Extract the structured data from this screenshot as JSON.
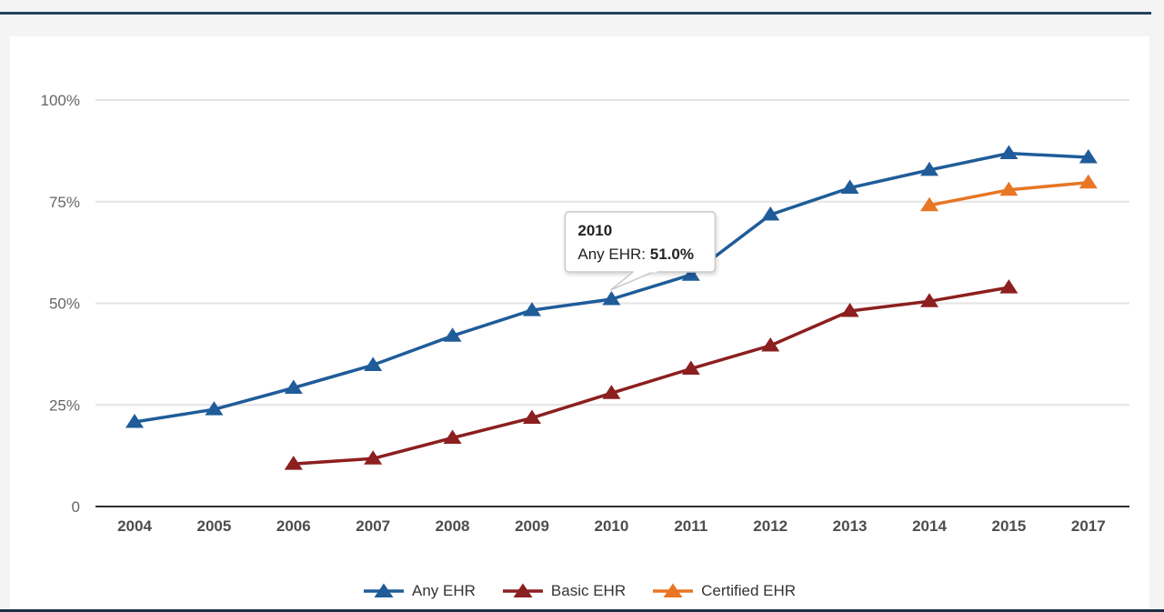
{
  "page": {
    "background_color": "#f4f4f5",
    "card_background": "#ffffff",
    "top_rule_color": "#24425e",
    "bottom_rule_color": "#1b3046"
  },
  "chart_data": {
    "type": "line",
    "title": "",
    "xlabel": "",
    "ylabel": "",
    "categories": [
      "2004",
      "2005",
      "2006",
      "2007",
      "2008",
      "2009",
      "2010",
      "2011",
      "2012",
      "2013",
      "2014",
      "2015",
      "2017"
    ],
    "series": [
      {
        "name": "Any EHR",
        "color": "#1f5c99",
        "marker": "triangle",
        "values": [
          20.8,
          23.9,
          29.2,
          34.8,
          42.0,
          48.3,
          51.0,
          57.0,
          71.8,
          78.4,
          82.8,
          86.9,
          85.9
        ]
      },
      {
        "name": "Basic EHR",
        "color": "#8c1f1f",
        "marker": "triangle",
        "values": [
          null,
          null,
          10.5,
          11.8,
          16.9,
          21.8,
          27.9,
          33.9,
          39.6,
          48.1,
          50.5,
          53.9,
          null
        ]
      },
      {
        "name": "Certified EHR",
        "color": "#e87624",
        "marker": "triangle",
        "values": [
          null,
          null,
          null,
          null,
          null,
          null,
          null,
          null,
          null,
          null,
          74.1,
          77.9,
          79.7
        ]
      }
    ],
    "ylim": [
      0,
      100
    ],
    "yticks": [
      {
        "value": 0,
        "label": "0"
      },
      {
        "value": 25,
        "label": "25%"
      },
      {
        "value": 50,
        "label": "50%"
      },
      {
        "value": 75,
        "label": "75%"
      },
      {
        "value": 100,
        "label": "100%"
      }
    ],
    "grid": true,
    "legend_position": "bottom",
    "gridline_color": "#e4e4e4",
    "axis_line_color": "#2f2f2f",
    "y_tick_label_color": "#666666",
    "x_tick_label_color": "#4d4d4d"
  },
  "tooltip": {
    "category": "2010",
    "category_index": 6,
    "series": "Any EHR",
    "series_index": 0,
    "label": "Any EHR: ",
    "value": "51.0%",
    "border_color": "#c8c8c8",
    "text_color": "#222222"
  }
}
